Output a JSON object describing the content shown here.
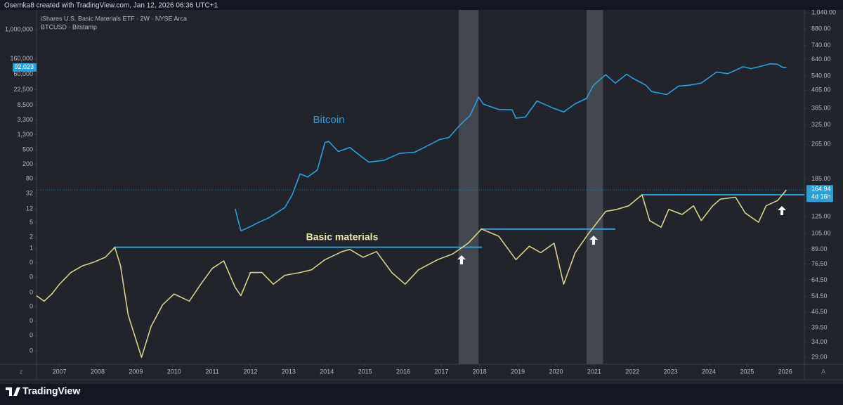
{
  "header": {
    "credit": "Osemka8 created with TradingView.com, Jan 12, 2026 06:36 UTC+1",
    "brand": "TradingView",
    "scale_buttons": [
      "z",
      "A"
    ]
  },
  "chart_data": {
    "type": "line",
    "log_scale": true,
    "grid": false,
    "annotations": [
      "Bitcoin",
      "Basic materials"
    ],
    "xlim": [
      2006.4,
      2026.5
    ],
    "xticks": [
      2007,
      2008,
      2009,
      2010,
      2011,
      2012,
      2013,
      2014,
      2015,
      2016,
      2017,
      2018,
      2019,
      2020,
      2021,
      2022,
      2023,
      2024,
      2025,
      2026
    ],
    "ylim": [
      0.00065,
      3500000
    ],
    "yticks": [
      {
        "value": 1000000,
        "label": "1,000,000"
      },
      {
        "value": 160000,
        "label": "160,000"
      },
      {
        "value": 60000,
        "label": "60,000"
      },
      {
        "value": 22500,
        "label": "22,500"
      },
      {
        "value": 8500,
        "label": "8,500"
      },
      {
        "value": 3300,
        "label": "3,300"
      },
      {
        "value": 1300,
        "label": "1,300"
      },
      500,
      200,
      80,
      32,
      12,
      5,
      2,
      1,
      {
        "value": 0.4,
        "label": "0"
      },
      {
        "value": 0.16,
        "label": "0"
      },
      {
        "value": 0.06,
        "label": "0"
      },
      {
        "value": 0.025,
        "label": "0"
      },
      {
        "value": 0.01,
        "label": "0"
      },
      {
        "value": 0.004,
        "label": "0"
      },
      {
        "value": 0.0015,
        "label": "0"
      }
    ],
    "y2lim": [
      27,
      1072
    ],
    "y2ticks": [
      {
        "value": 1040,
        "label": "1,040.00"
      },
      {
        "value": 880,
        "label": "880.00"
      },
      {
        "value": 740,
        "label": "740.00"
      },
      {
        "value": 640,
        "label": "640.00"
      },
      {
        "value": 540,
        "label": "540.00"
      },
      {
        "value": 465,
        "label": "465.00"
      },
      {
        "value": 385,
        "label": "385.00"
      },
      {
        "value": 325,
        "label": "325.00"
      },
      {
        "value": 265,
        "label": "265.00"
      },
      {
        "value": 185,
        "label": "185.00"
      },
      {
        "value": 125,
        "label": "125.00"
      },
      {
        "value": 105,
        "label": "105.00"
      },
      {
        "value": 89,
        "label": "89.00"
      },
      {
        "value": 76.5,
        "label": "76.50"
      },
      {
        "value": 64.5,
        "label": "64.50"
      },
      {
        "value": 54.5,
        "label": "54.50"
      },
      {
        "value": 46.5,
        "label": "46.50"
      },
      {
        "value": 39.5,
        "label": "39.50"
      },
      {
        "value": 34,
        "label": "34.00"
      },
      {
        "value": 29,
        "label": "29.00"
      }
    ],
    "last_price": {
      "value": 92023,
      "label": "92,023"
    },
    "current_price": 164.94,
    "countdown": "4d 16h",
    "highlight_ranges": [
      [
        2017.45,
        2017.97
      ],
      [
        2020.8,
        2021.23
      ]
    ],
    "levels": [
      {
        "value": 91,
        "from": 2008.43,
        "to": 2018.06
      },
      {
        "value": 110,
        "from": 2018.02,
        "to": 2021.55
      },
      {
        "value": 157,
        "from": 2022.23,
        "to": 2026.5
      }
    ],
    "series": [
      {
        "name": "iShares U.S. Basic Materials ETF · 2W · NYSE Arca",
        "color": "#d8cf8a",
        "axis": "y2",
        "x": [
          2006.4,
          2006.6,
          2006.8,
          2007.0,
          2007.3,
          2007.6,
          2007.9,
          2008.2,
          2008.45,
          2008.6,
          2008.8,
          2009.0,
          2009.15,
          2009.4,
          2009.7,
          2010.0,
          2010.4,
          2010.7,
          2011.0,
          2011.3,
          2011.6,
          2011.75,
          2012.0,
          2012.3,
          2012.6,
          2012.9,
          2013.3,
          2013.6,
          2013.95,
          2014.4,
          2014.6,
          2014.95,
          2015.3,
          2015.7,
          2016.05,
          2016.4,
          2016.9,
          2017.3,
          2017.7,
          2018.05,
          2018.5,
          2018.95,
          2019.3,
          2019.6,
          2019.95,
          2020.2,
          2020.5,
          2020.85,
          2021.3,
          2021.6,
          2021.9,
          2022.25,
          2022.45,
          2022.75,
          2022.95,
          2023.3,
          2023.6,
          2023.8,
          2024.1,
          2024.3,
          2024.7,
          2024.95,
          2025.3,
          2025.5,
          2025.8,
          2026.03
        ],
        "values": [
          55,
          52,
          56,
          62,
          70,
          75,
          78,
          82,
          91,
          75,
          45,
          35,
          29,
          40,
          50,
          56,
          52,
          62,
          73,
          79,
          60,
          55,
          70,
          70,
          62,
          68,
          70,
          72,
          80,
          87,
          89,
          82,
          87,
          70,
          62,
          72,
          80,
          85,
          95,
          110,
          102,
          80,
          92,
          86,
          95,
          62,
          86,
          105,
          132,
          135,
          140,
          157,
          120,
          112,
          135,
          128,
          140,
          120,
          140,
          150,
          153,
          130,
          118,
          140,
          148,
          164.94
        ]
      },
      {
        "name": "BTCUSD · Bitstamp",
        "color": "#2a9fd8",
        "axis": "y",
        "x": [
          2011.6,
          2011.75,
          2011.9,
          2012.2,
          2012.5,
          2012.9,
          2013.1,
          2013.3,
          2013.5,
          2013.75,
          2013.95,
          2014.05,
          2014.3,
          2014.6,
          2014.9,
          2015.1,
          2015.5,
          2015.9,
          2016.3,
          2016.6,
          2016.95,
          2017.2,
          2017.5,
          2017.75,
          2017.97,
          2018.1,
          2018.5,
          2018.85,
          2018.95,
          2019.2,
          2019.5,
          2019.9,
          2020.2,
          2020.5,
          2020.8,
          2020.97,
          2021.3,
          2021.55,
          2021.85,
          2022.0,
          2022.35,
          2022.5,
          2022.9,
          2023.2,
          2023.5,
          2023.8,
          2024.2,
          2024.5,
          2024.9,
          2025.1,
          2025.3,
          2025.6,
          2025.8,
          2025.95,
          2026.03
        ],
        "values": [
          12,
          3,
          3.5,
          5,
          7,
          13,
          30,
          110,
          90,
          140,
          800,
          850,
          450,
          580,
          330,
          230,
          260,
          400,
          430,
          620,
          960,
          1100,
          2500,
          4400,
          14000,
          9000,
          6400,
          6300,
          3700,
          4000,
          11000,
          7200,
          5500,
          9200,
          13000,
          29000,
          58000,
          34000,
          60000,
          47000,
          30000,
          20000,
          16500,
          28000,
          30000,
          34000,
          68000,
          62000,
          96000,
          85000,
          95000,
          115000,
          112000,
          90000,
          92023
        ]
      }
    ]
  }
}
